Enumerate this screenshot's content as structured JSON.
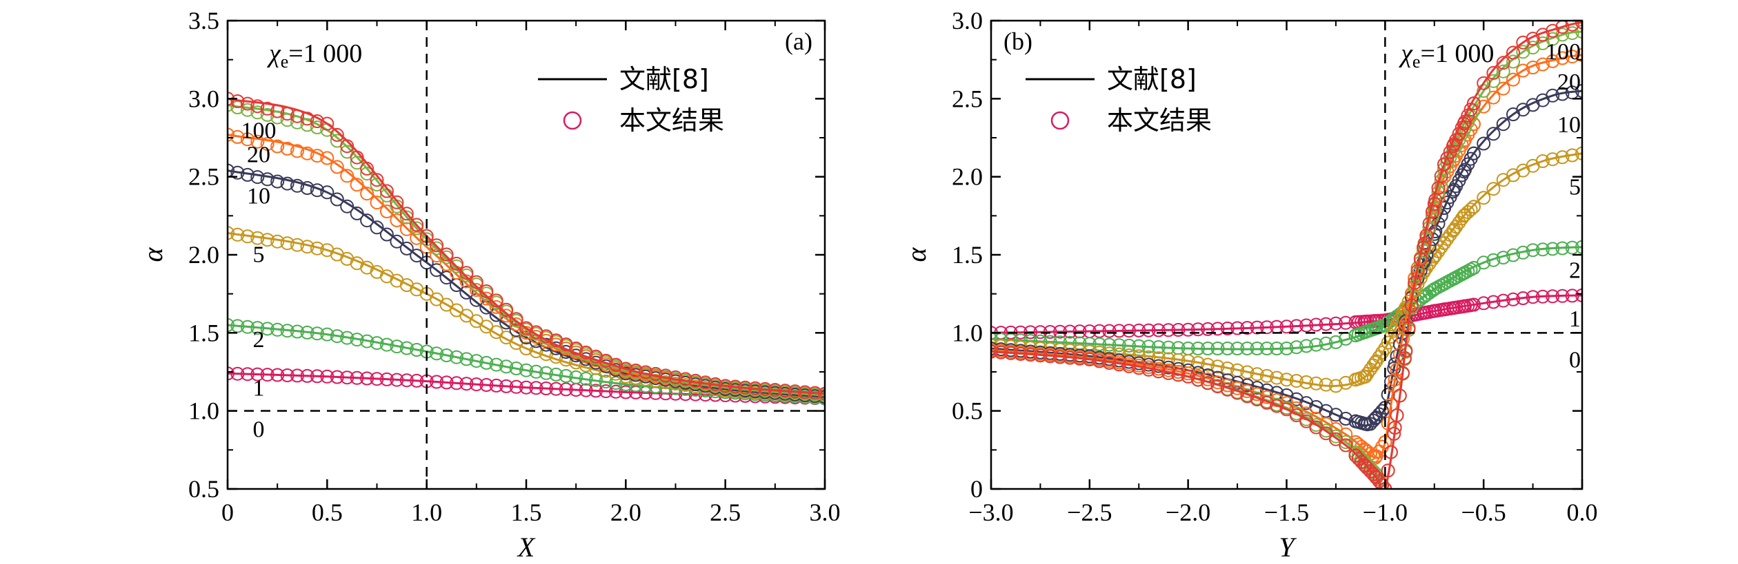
{
  "chart_data": [
    {
      "type": "line",
      "panel": "(a)",
      "xlabel": "X",
      "ylabel": "α",
      "xlim": [
        0,
        3
      ],
      "ylim": [
        0.5,
        3.5
      ],
      "xticks": [
        "0",
        "0.5",
        "1.0",
        "1.5",
        "2.0",
        "2.5",
        "3.0"
      ],
      "yticks": [
        "0.5",
        "1.0",
        "1.5",
        "2.0",
        "2.5",
        "3.0",
        "3.5"
      ],
      "param_prefix": "χ",
      "param_sub": "e",
      "param_value": "=1 000",
      "legend": {
        "position": "top-right",
        "line_label": "文献[8]",
        "marker_label": "本文结果"
      },
      "reference_lines": {
        "x": 1.0,
        "y": 1.0
      },
      "series": [
        {
          "name": "0",
          "x": [
            0,
            1.0,
            3.0
          ],
          "y": [
            1.0,
            1.0,
            1.0
          ],
          "color": "#000000"
        },
        {
          "name": "1",
          "x": [
            0,
            0.5,
            1.0,
            1.5,
            2.0,
            2.5,
            3.0
          ],
          "y": [
            1.24,
            1.22,
            1.19,
            1.15,
            1.12,
            1.1,
            1.08
          ],
          "color": "#d81b60"
        },
        {
          "name": "2",
          "x": [
            0,
            0.5,
            1.0,
            1.5,
            2.0,
            2.5,
            3.0
          ],
          "y": [
            1.55,
            1.49,
            1.38,
            1.26,
            1.17,
            1.12,
            1.08
          ],
          "color": "#4caf50"
        },
        {
          "name": "5",
          "x": [
            0,
            0.5,
            1.0,
            1.5,
            2.0,
            2.5,
            3.0
          ],
          "y": [
            2.14,
            2.03,
            1.75,
            1.4,
            1.22,
            1.13,
            1.09
          ],
          "color": "#c8961e"
        },
        {
          "name": "10",
          "x": [
            0,
            0.5,
            1.0,
            1.5,
            2.0,
            2.5,
            3.0
          ],
          "y": [
            2.54,
            2.4,
            1.95,
            1.47,
            1.24,
            1.14,
            1.09
          ],
          "color": "#3a3a5a"
        },
        {
          "name": "20",
          "x": [
            0,
            0.5,
            1.0,
            1.5,
            2.0,
            2.5,
            3.0
          ],
          "y": [
            2.77,
            2.62,
            2.05,
            1.5,
            1.25,
            1.15,
            1.1
          ],
          "color": "#ff6d1a"
        },
        {
          "name": "100",
          "x": [
            0,
            0.5,
            1.0,
            1.5,
            2.0,
            2.5,
            3.0
          ],
          "y": [
            2.96,
            2.8,
            2.1,
            1.52,
            1.26,
            1.15,
            1.1
          ],
          "color": "#7cb342"
        },
        {
          "name": "",
          "x": [
            0,
            0.5,
            1.0,
            1.5,
            2.0,
            2.5,
            3.0
          ],
          "y": [
            3.0,
            2.84,
            2.12,
            1.53,
            1.27,
            1.16,
            1.11
          ],
          "color": "#e53935"
        }
      ]
    },
    {
      "type": "line",
      "panel": "(b)",
      "xlabel": "Y",
      "ylabel": "α",
      "xlim": [
        -3.0,
        0.0
      ],
      "ylim": [
        0,
        3.0
      ],
      "xticks": [
        "−3.0",
        "−2.5",
        "−2.0",
        "−1.5",
        "−1.0",
        "−0.5",
        "0.0"
      ],
      "yticks": [
        "0",
        "0.5",
        "1.0",
        "1.5",
        "2.0",
        "2.5",
        "3.0"
      ],
      "param_prefix": "χ",
      "param_sub": "e",
      "param_value": "=1 000",
      "legend": {
        "position": "top-left",
        "line_label": "文献[8]",
        "marker_label": "本文结果"
      },
      "reference_lines": {
        "x": -1.0,
        "y": 1.0
      },
      "series": [
        {
          "name": "0",
          "x": [
            -3.0,
            -1.0,
            0.0
          ],
          "y": [
            1.0,
            1.0,
            1.0
          ],
          "color": "#000000"
        },
        {
          "name": "1",
          "x": [
            -3.0,
            -2.5,
            -2.0,
            -1.5,
            -1.0,
            -0.75,
            -0.5,
            -0.25,
            0.0
          ],
          "y": [
            1.0,
            1.01,
            1.02,
            1.04,
            1.08,
            1.14,
            1.19,
            1.23,
            1.24
          ],
          "color": "#d81b60"
        },
        {
          "name": "2",
          "x": [
            -3.0,
            -2.5,
            -2.0,
            -1.5,
            -1.25,
            -1.0,
            -0.75,
            -0.5,
            -0.25,
            0.0
          ],
          "y": [
            0.96,
            0.93,
            0.9,
            0.9,
            0.94,
            1.05,
            1.28,
            1.45,
            1.53,
            1.55
          ],
          "color": "#4caf50"
        },
        {
          "name": "5",
          "x": [
            -3.0,
            -2.5,
            -2.0,
            -1.5,
            -1.25,
            -1.1,
            -1.0,
            -0.9,
            -0.8,
            -0.6,
            -0.4,
            -0.2,
            0.0
          ],
          "y": [
            0.92,
            0.88,
            0.82,
            0.7,
            0.66,
            0.72,
            0.9,
            1.15,
            1.4,
            1.75,
            1.98,
            2.1,
            2.15
          ],
          "color": "#c8961e"
        },
        {
          "name": "10",
          "x": [
            -3.0,
            -2.5,
            -2.0,
            -1.5,
            -1.2,
            -1.08,
            -1.0,
            -0.95,
            -0.85,
            -0.7,
            -0.55,
            -0.35,
            -0.15,
            0.0
          ],
          "y": [
            0.9,
            0.85,
            0.76,
            0.6,
            0.45,
            0.41,
            0.52,
            0.8,
            1.3,
            1.8,
            2.15,
            2.4,
            2.52,
            2.55
          ],
          "color": "#3a3a5a"
        },
        {
          "name": "20",
          "x": [
            -3.0,
            -2.5,
            -2.0,
            -1.5,
            -1.2,
            -1.05,
            -1.0,
            -0.95,
            -0.85,
            -0.7,
            -0.5,
            -0.3,
            -0.1,
            0.0
          ],
          "y": [
            0.89,
            0.84,
            0.74,
            0.55,
            0.35,
            0.2,
            0.3,
            0.7,
            1.35,
            2.0,
            2.45,
            2.68,
            2.76,
            2.78
          ],
          "color": "#ff6d1a"
        },
        {
          "name": "100",
          "x": [
            -3.0,
            -2.5,
            -2.0,
            -1.5,
            -1.2,
            -1.05,
            -1.0,
            -0.93,
            -0.85,
            -0.7,
            -0.5,
            -0.3,
            -0.1,
            0.0
          ],
          "y": [
            0.88,
            0.83,
            0.72,
            0.52,
            0.3,
            0.1,
            0.0,
            0.55,
            1.3,
            2.05,
            2.55,
            2.8,
            2.91,
            2.93
          ],
          "color": "#7cb342"
        },
        {
          "name": "",
          "x": [
            -3.0,
            -2.5,
            -2.0,
            -1.5,
            -1.2,
            -1.05,
            -1.0,
            -0.93,
            -0.85,
            -0.7,
            -0.5,
            -0.3,
            -0.1,
            0.0
          ],
          "y": [
            0.88,
            0.83,
            0.72,
            0.51,
            0.28,
            0.08,
            0.0,
            0.55,
            1.32,
            2.08,
            2.6,
            2.86,
            2.96,
            2.99
          ],
          "color": "#e53935"
        }
      ],
      "curve_label_side": "right"
    }
  ]
}
